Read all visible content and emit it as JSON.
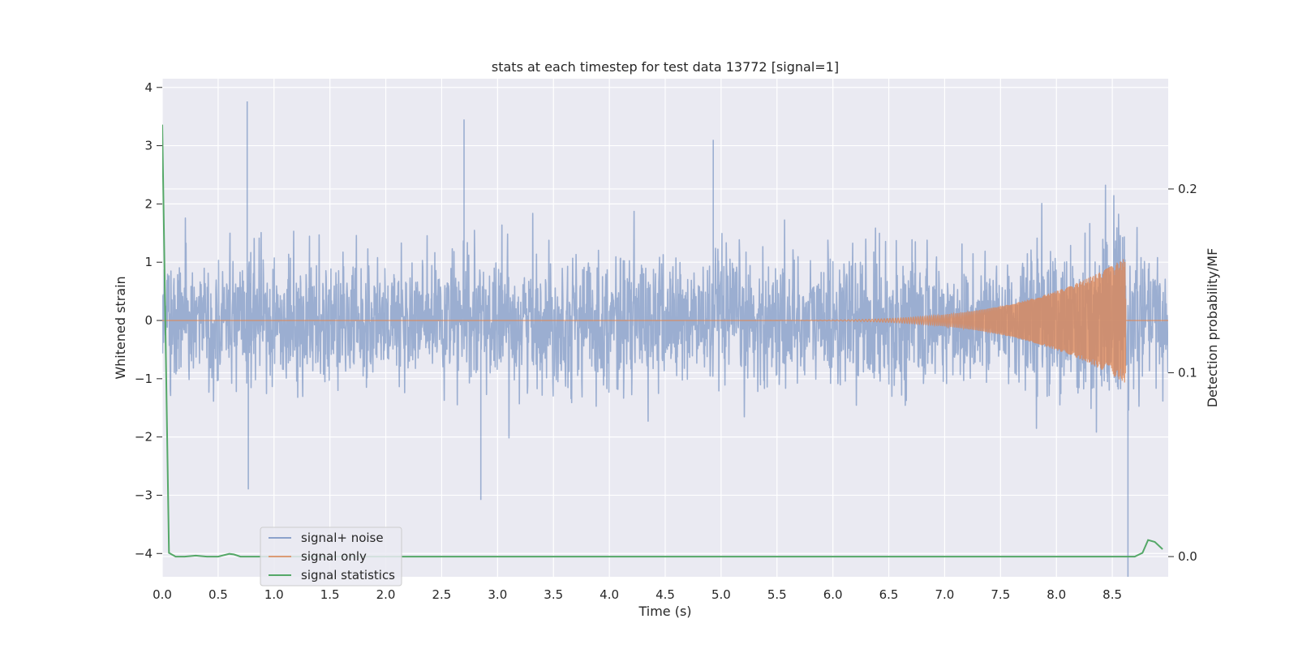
{
  "chart_data": {
    "type": "line",
    "title": "stats at each timestep for test data 13772 [signal=1]",
    "xlabel": "Time (s)",
    "ylabel": "Whitened strain",
    "y2label": "Detection probability/MF",
    "xlim": [
      0.0,
      9.0
    ],
    "ylim": [
      -4.4,
      4.15
    ],
    "y2lim": [
      -0.011,
      0.26
    ],
    "x_ticks": [
      0.0,
      0.5,
      1.0,
      1.5,
      2.0,
      2.5,
      3.0,
      3.5,
      4.0,
      4.5,
      5.0,
      5.5,
      6.0,
      6.5,
      7.0,
      7.5,
      8.0,
      8.5
    ],
    "x_tick_labels": [
      "0.0",
      "0.5",
      "1.0",
      "1.5",
      "2.0",
      "2.5",
      "3.0",
      "3.5",
      "4.0",
      "4.5",
      "5.0",
      "5.5",
      "6.0",
      "6.5",
      "7.0",
      "7.5",
      "8.0",
      "8.5"
    ],
    "y_ticks": [
      -4,
      -3,
      -2,
      -1,
      0,
      1,
      2,
      3,
      4
    ],
    "y_tick_labels": [
      "−4",
      "−3",
      "−2",
      "−1",
      "0",
      "1",
      "2",
      "3",
      "4"
    ],
    "y2_ticks": [
      0.0,
      0.1,
      0.2
    ],
    "y2_tick_labels": [
      "0.0",
      "0.1",
      "0.2"
    ],
    "grid": true,
    "legend_position": "lower-left",
    "series": [
      {
        "name": "signal+ noise",
        "axis": "left",
        "color": "#4c72b0",
        "noise_std": 0.55,
        "notable_peaks": [
          {
            "x": 0.76,
            "y": 3.76
          },
          {
            "x": 2.7,
            "y": 3.45
          },
          {
            "x": 4.93,
            "y": 3.1
          },
          {
            "x": 2.85,
            "y": -3.08
          },
          {
            "x": 0.77,
            "y": -2.9
          },
          {
            "x": 8.64,
            "y": -4.4
          }
        ]
      },
      {
        "name": "signal only",
        "axis": "left",
        "color": "#dd8452",
        "chirp": {
          "start": 5.0,
          "end": 8.62,
          "peak_amplitude": 1.08,
          "f_start": 18,
          "f_end": 60
        }
      },
      {
        "name": "signal statistics",
        "axis": "right",
        "color": "#55a868",
        "x": [
          0.0,
          0.06,
          0.12,
          0.2,
          0.3,
          0.4,
          0.5,
          0.6,
          0.64,
          0.7,
          0.8,
          1.0,
          2.0,
          3.0,
          4.0,
          5.0,
          6.0,
          7.0,
          8.0,
          8.5,
          8.6,
          8.7,
          8.77,
          8.82,
          8.88,
          8.95
        ],
        "y": [
          0.235,
          0.002,
          0.0,
          0.0,
          0.0005,
          0.0,
          0.0,
          0.0015,
          0.0012,
          0.0,
          0.0,
          0.0,
          0.0,
          0.0,
          0.0,
          0.0,
          0.0,
          0.0,
          0.0,
          0.0,
          0.0,
          0.0,
          0.002,
          0.009,
          0.008,
          0.004
        ]
      }
    ]
  }
}
